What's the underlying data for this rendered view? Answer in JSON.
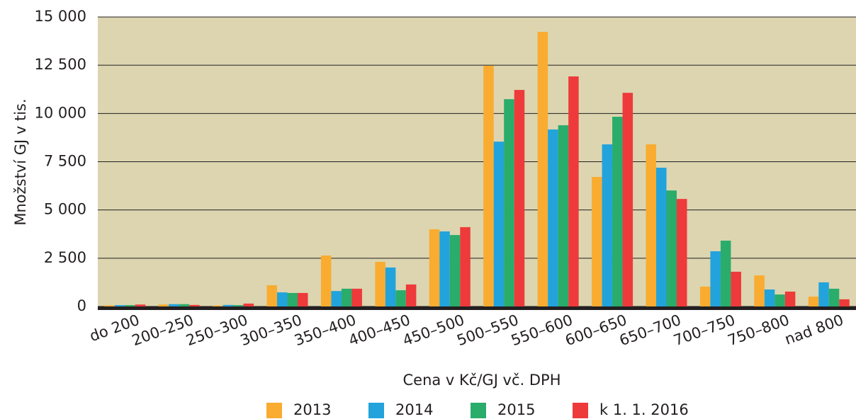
{
  "chart_data": {
    "type": "bar",
    "y_label": "Množství GJ v tis.",
    "x_label": "Cena v Kč/GJ vč. DPH",
    "categories": [
      "do 200",
      "200–250",
      "250–300",
      "300–350",
      "350–400",
      "400–450",
      "450–500",
      "500–550",
      "550–600",
      "600–650",
      "650–700",
      "700–750",
      "750–800",
      "nad 800"
    ],
    "series": [
      {
        "name": "2013",
        "color": "#f9ac30",
        "values": [
          60,
          100,
          50,
          1100,
          2640,
          2310,
          4000,
          12470,
          14230,
          6710,
          8400,
          1030,
          1610,
          510
        ]
      },
      {
        "name": "2014",
        "color": "#22a3dc",
        "values": [
          70,
          120,
          80,
          730,
          800,
          2020,
          3890,
          8540,
          9170,
          8400,
          7190,
          2860,
          880,
          1250
        ]
      },
      {
        "name": "2015",
        "color": "#2aac6b",
        "values": [
          70,
          120,
          70,
          700,
          920,
          840,
          3700,
          10740,
          9390,
          9830,
          6010,
          3410,
          620,
          920
        ]
      },
      {
        "name": "k 1. 1. 2016",
        "color": "#ee3a3a",
        "values": [
          100,
          80,
          150,
          700,
          920,
          1140,
          4110,
          11220,
          11920,
          11070,
          5570,
          1800,
          770,
          370
        ]
      }
    ],
    "ylim": [
      0,
      15000
    ],
    "yticks": [
      0,
      {
        "value": 2500,
        "label": "2 500"
      },
      {
        "value": 5000,
        "label": "5 000"
      },
      {
        "value": 7500,
        "label": "7 500"
      },
      {
        "value": 10000,
        "label": "10 000"
      },
      {
        "value": 12500,
        "label": "12 500"
      },
      {
        "value": 15000,
        "label": "15 000"
      }
    ],
    "grid": true,
    "legend": "bottom"
  }
}
